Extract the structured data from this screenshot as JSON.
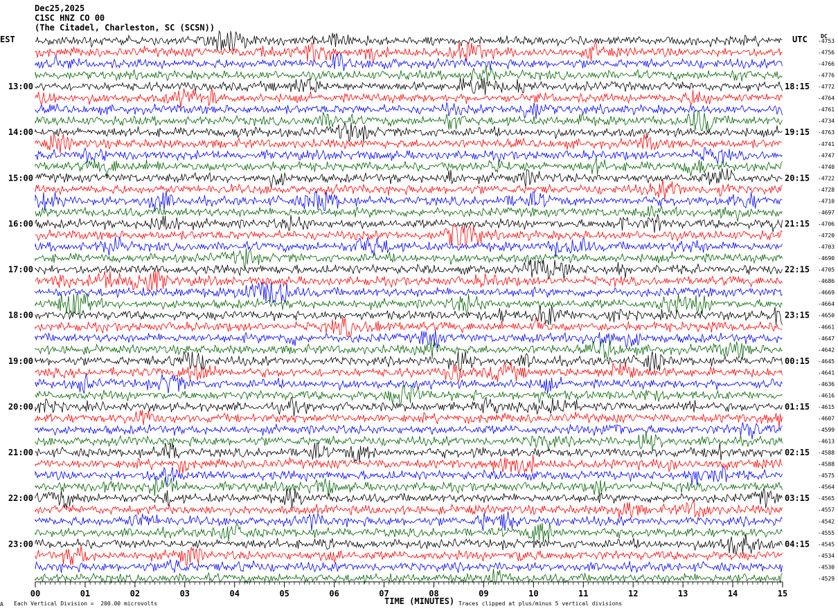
{
  "header": {
    "date": "Dec25,2025",
    "station": "C1SC HNZ CO 00",
    "location": "(The Citadel, Charleston, SC (SCSN))"
  },
  "left_zone_label": "EST",
  "right_zone_label": "UTC",
  "dc_label": "DC",
  "footer": {
    "scale_note": "Each Vertical Division =  200.00 microvolts",
    "clip_note": "Traces clipped at plus/minus 5 vertical divisions",
    "corner_mark": "A"
  },
  "chart_data": {
    "type": "line",
    "xlabel": "TIME (MINUTES)",
    "xlim": [
      0,
      15
    ],
    "x_ticks": [
      "00",
      "01",
      "02",
      "03",
      "04",
      "05",
      "06",
      "07",
      "08",
      "09",
      "10",
      "11",
      "12",
      "13",
      "14",
      "15"
    ],
    "left_hour_labels": [
      "13:00",
      "14:00",
      "15:00",
      "16:00",
      "17:00",
      "18:00",
      "19:00",
      "20:00",
      "21:00",
      "22:00",
      "23:00"
    ],
    "right_hour_labels": [
      "18:15",
      "19:15",
      "20:15",
      "21:15",
      "22:15",
      "23:15",
      "00:15",
      "01:15",
      "02:15",
      "03:15",
      "04:15"
    ],
    "trace_color_cycle": [
      "#000000",
      "#ff0000",
      "#0000ff",
      "#006400"
    ],
    "dc_offsets": [
      -4753,
      -4756,
      -4766,
      -4776,
      -4772,
      -4764,
      -4761,
      -4734,
      -4763,
      -4741,
      -4747,
      -4740,
      -4722,
      -4728,
      -4710,
      -4697,
      -4706,
      -4720,
      -4703,
      -4690,
      -4705,
      -4686,
      -4669,
      -4664,
      -4650,
      -4661,
      -4647,
      -4642,
      -4645,
      -4641,
      -4636,
      -4616,
      -4615,
      -4607,
      -4599,
      -4613,
      -4588,
      -4588,
      -4575,
      -4564,
      -4565,
      -4557,
      -4542,
      -4555,
      -4545,
      -4534,
      -4530,
      -4529
    ]
  }
}
